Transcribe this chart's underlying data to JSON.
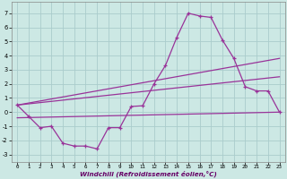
{
  "xlabel": "Windchill (Refroidissement éolien,°C)",
  "background_color": "#cce8e4",
  "grid_color": "#aacccc",
  "line_color": "#993399",
  "x_ticks": [
    0,
    1,
    2,
    3,
    4,
    5,
    6,
    7,
    8,
    9,
    10,
    11,
    12,
    13,
    14,
    15,
    16,
    17,
    18,
    19,
    20,
    21,
    22,
    23
  ],
  "y_ticks": [
    -3,
    -2,
    -1,
    0,
    1,
    2,
    3,
    4,
    5,
    6,
    7
  ],
  "ylim": [
    -3.5,
    7.8
  ],
  "xlim": [
    -0.5,
    23.5
  ],
  "line1_x": [
    0,
    1,
    2,
    3,
    4,
    5,
    6,
    7,
    8,
    9,
    10,
    11,
    12,
    13,
    14,
    15,
    16,
    17,
    18,
    19,
    20,
    21,
    22,
    23
  ],
  "line1_y": [
    0.5,
    -0.3,
    -1.1,
    -1.0,
    -2.2,
    -2.4,
    -2.4,
    -2.6,
    -1.1,
    -1.1,
    0.4,
    0.45,
    2.0,
    3.3,
    5.3,
    7.0,
    6.8,
    6.7,
    5.1,
    3.8,
    1.8,
    1.5,
    1.5,
    0.0
  ],
  "line2_x": [
    0,
    23
  ],
  "line2_y": [
    0.5,
    3.8
  ],
  "line3_x": [
    0,
    23
  ],
  "line3_y": [
    0.5,
    2.5
  ],
  "line4_x": [
    0,
    23
  ],
  "line4_y": [
    -0.4,
    0.0
  ]
}
